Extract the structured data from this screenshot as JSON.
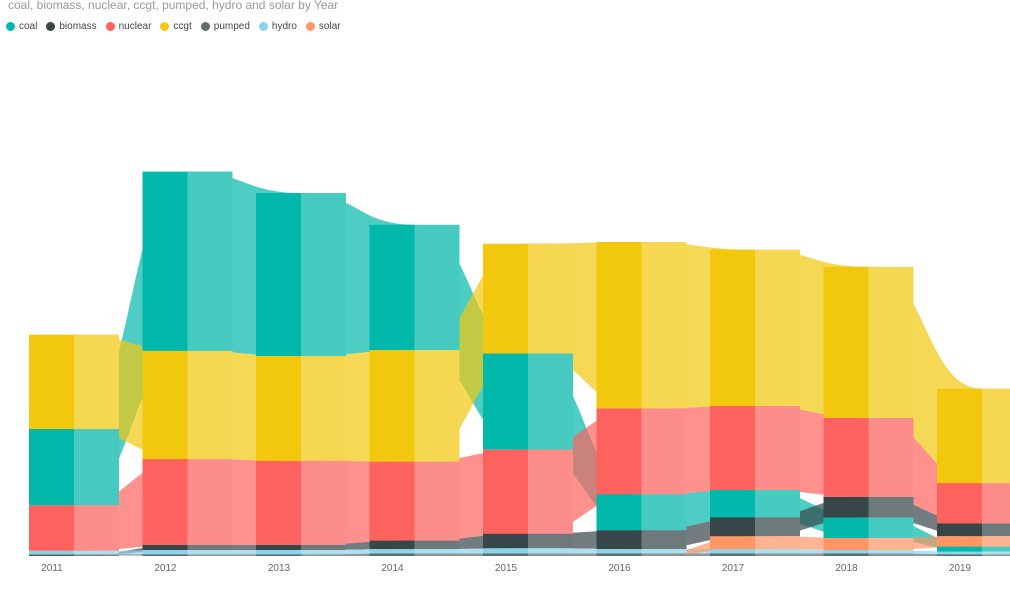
{
  "chart_data": {
    "type": "ribbon",
    "title": "coal,  biomass,  nuclear,  ccgt,  pumped,  hydro and  solar by Year",
    "categories": [
      "2011",
      "2012",
      "2013",
      "2014",
      "2015",
      "2016",
      "2017",
      "2018",
      "2019"
    ],
    "series": [
      {
        "name": "coal",
        "color": "#01B8AA",
        "values": [
          89,
          209,
          190,
          146,
          112,
          42,
          32,
          24,
          6
        ]
      },
      {
        "name": "biomass",
        "color": "#374649",
        "values": [
          1,
          6,
          6,
          10,
          17,
          22,
          22,
          24,
          15
        ]
      },
      {
        "name": "nuclear",
        "color": "#FD625E",
        "values": [
          53,
          100,
          98,
          92,
          98,
          100,
          98,
          92,
          47
        ]
      },
      {
        "name": "ccgt",
        "color": "#F2C80F",
        "values": [
          110,
          126,
          122,
          130,
          128,
          194,
          182,
          176,
          110
        ]
      },
      {
        "name": "pumped",
        "color": "#5F6B6D",
        "values": [
          1,
          2,
          2,
          3,
          3,
          3,
          3,
          3,
          2
        ]
      },
      {
        "name": "hydro",
        "color": "#8AD4EB",
        "values": [
          4,
          5,
          5,
          5,
          6,
          5,
          5,
          4,
          3
        ]
      },
      {
        "name": "solar",
        "color": "#FE9666",
        "values": [
          0,
          0,
          0,
          0,
          0,
          0,
          15,
          14,
          12
        ]
      }
    ],
    "legend_position": "top-left",
    "grid": false
  }
}
